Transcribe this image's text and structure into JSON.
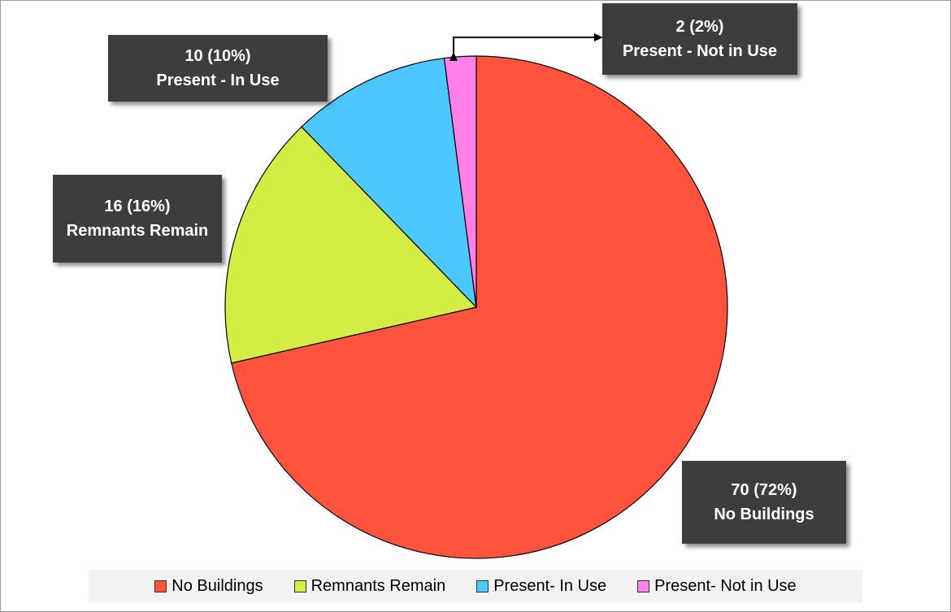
{
  "chart_data": {
    "type": "pie",
    "title": "",
    "slices": [
      {
        "name": "No Buildings",
        "value": 70,
        "percent_label": "72%",
        "color": "#FF533D"
      },
      {
        "name": "Remnants Remain",
        "value": 16,
        "percent_label": "16%",
        "color": "#D4ED45"
      },
      {
        "name": "Present- In Use",
        "value": 10,
        "percent_label": "10%",
        "color": "#4CC7FF"
      },
      {
        "name": "Present- Not in Use",
        "value": 2,
        "percent_label": "2%",
        "color": "#FF80E6"
      }
    ],
    "data_labels": [
      {
        "line1": "70 (72%)",
        "line2": "No Buildings"
      },
      {
        "line1": "16 (16%)",
        "line2": "Remnants Remain"
      },
      {
        "line1": "10 (10%)",
        "line2": "Present - In Use"
      },
      {
        "line1": "2 (2%)",
        "line2": "Present - Not in Use"
      }
    ],
    "legend_position": "bottom",
    "start_angle": "12 o'clock",
    "direction": "clockwise"
  }
}
